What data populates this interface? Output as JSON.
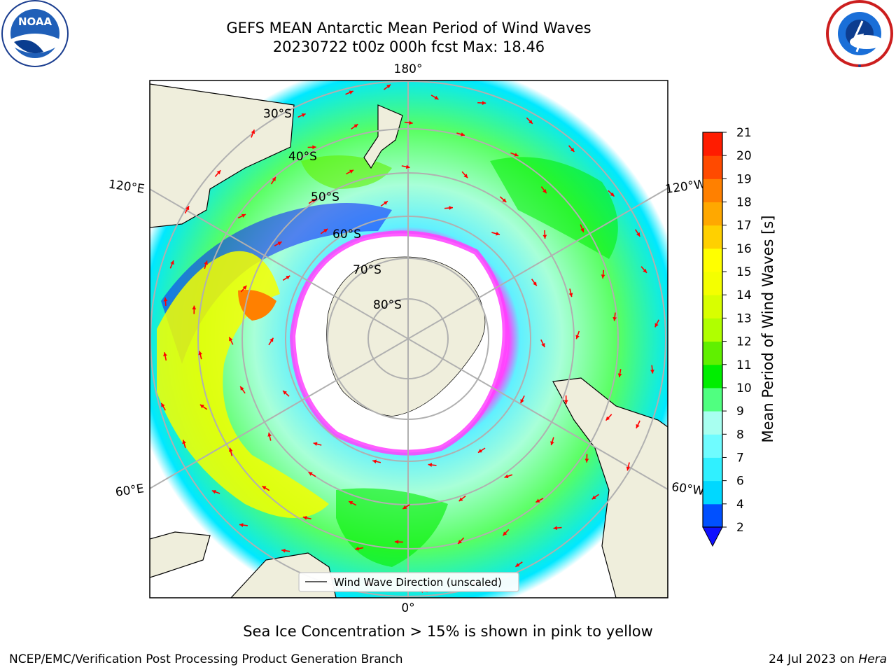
{
  "header": {
    "title_line1": "GEFS MEAN Antarctic Mean Period of Wind Waves",
    "title_line2": "20230722 t00z 000h fcst   Max: 18.46"
  },
  "logos": {
    "left": "NOAA",
    "left_ring": "NATIONAL OCEANIC AND ATMOSPHERIC ADMINISTRATION · U.S. DEPARTMENT OF COMMERCE",
    "right_ring": "NATIONAL WEATHER SERVICE"
  },
  "map": {
    "projection": "south-polar-stereographic",
    "lon_labels": {
      "top": "180°",
      "bottom": "0°",
      "left_upper": "120°E",
      "left_lower": "60°E",
      "right_upper": "120°W",
      "right_lower": "60°W"
    },
    "lat_labels": [
      "30°S",
      "40°S",
      "50°S",
      "60°S",
      "70°S",
      "80°S"
    ],
    "legend_label": "Wind Wave Direction (unscaled)"
  },
  "colorbar": {
    "label": "Mean Period of Wind Waves [s]",
    "ticks": [
      "2",
      "4",
      "6",
      "7",
      "8",
      "9",
      "10",
      "11",
      "12",
      "13",
      "14",
      "15",
      "16",
      "17",
      "18",
      "19",
      "20",
      "21"
    ],
    "colors": [
      "#0050ff",
      "#00d8ff",
      "#30f0ff",
      "#6ffcff",
      "#a8fff0",
      "#50ff80",
      "#00ee00",
      "#60f000",
      "#b0ff00",
      "#d8ff00",
      "#f4ff00",
      "#ffff00",
      "#ffd000",
      "#ffa800",
      "#ff8000",
      "#ff4a00",
      "#ff1c00"
    ],
    "extend_color": "#1010ff"
  },
  "note": "Sea Ice Concentration > 15% is shown in pink to yellow",
  "footer": {
    "left": "NCEP/EMC/Verification Post Processing Product Generation Branch",
    "right_prefix": "24 Jul 2023 on ",
    "right_host": "Hera"
  }
}
